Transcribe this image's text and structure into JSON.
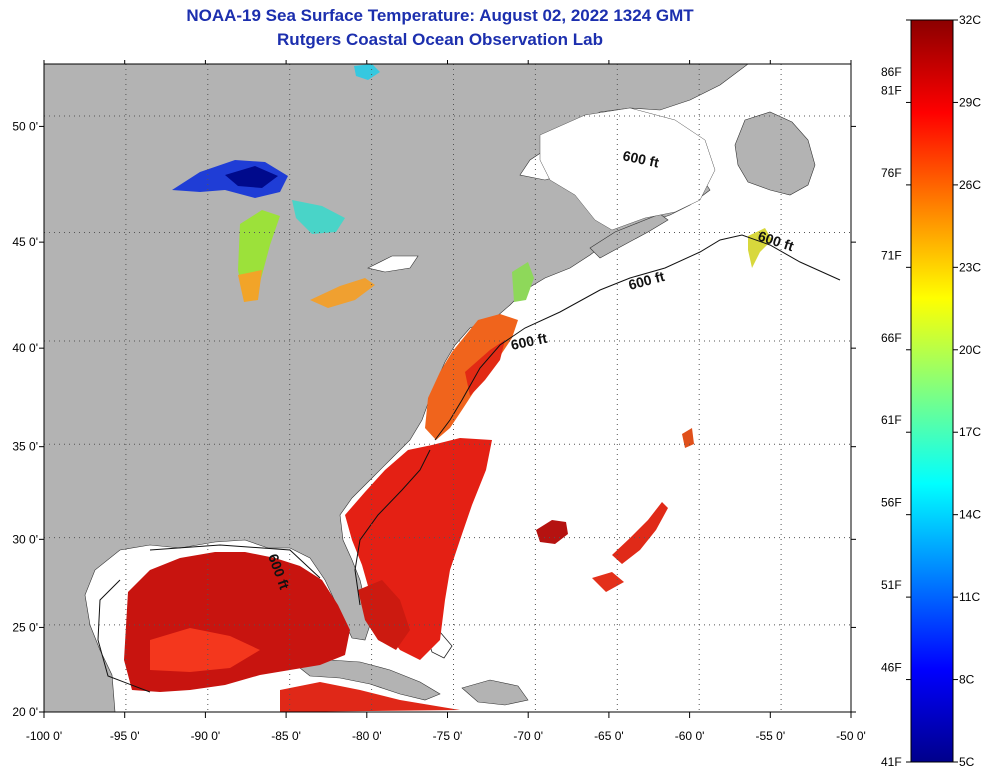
{
  "title": {
    "line1": "NOAA-19 Sea Surface Temperature:  August 02, 2022 1324 GMT",
    "line2": "Rutgers Coastal Ocean Observation Lab"
  },
  "map": {
    "lon_ticks": [
      -100,
      -95,
      -90,
      -85,
      -80,
      -75,
      -70,
      -65,
      -60,
      -55,
      -50
    ],
    "lon_tick_labels": [
      "-100 0'",
      "-95 0'",
      "-90 0'",
      "-85 0'",
      "-80 0'",
      "-75 0'",
      "-70 0'",
      "-65 0'",
      "-60 0'",
      "-55 0'",
      "-50 0'"
    ],
    "lat_ticks": [
      20,
      25,
      30,
      35,
      40,
      45,
      50
    ],
    "lat_tick_labels": [
      "20 0'",
      "25 0'",
      "30 0'",
      "35 0'",
      "40 0'",
      "45 0'",
      "50 0'"
    ],
    "lon_range": [
      -100,
      -50
    ],
    "lat_range": [
      20,
      52.5
    ],
    "grid": true,
    "isobath_labels": [
      "600 ft",
      "600 ft",
      "600 ft",
      "600 ft",
      "600 ft"
    ],
    "land_color": "#b3b3b3",
    "no_data_color": "#ffffff"
  },
  "colorbar": {
    "min_c": 5,
    "max_c": 32,
    "celsius_labels": [
      "32C",
      "29C",
      "26C",
      "23C",
      "20C",
      "17C",
      "14C",
      "11C",
      "8C",
      "5C"
    ],
    "fahrenheit_labels": [
      "86F",
      "81F",
      "76F",
      "71F",
      "66F",
      "61F",
      "56F",
      "51F",
      "46F",
      "41F"
    ],
    "colors": [
      "#00008b",
      "#0000ff",
      "#0080ff",
      "#00ffff",
      "#80ff80",
      "#ffff00",
      "#ff8000",
      "#ff0000",
      "#8b0000"
    ]
  }
}
